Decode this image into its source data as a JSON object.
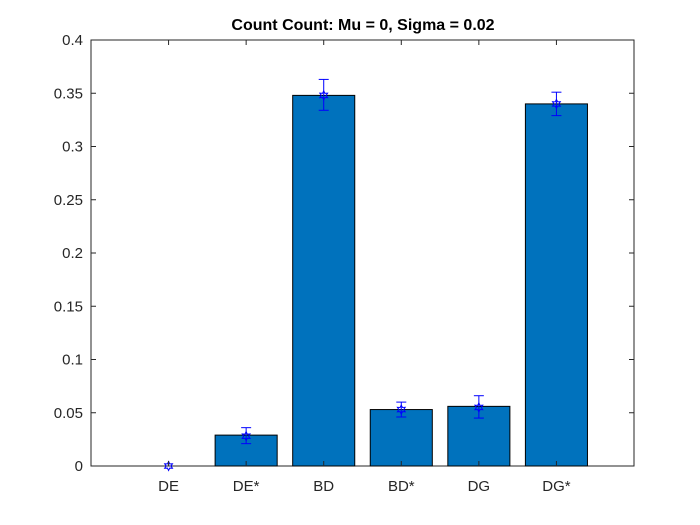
{
  "chart_data": {
    "type": "bar",
    "title": "Count Count: Mu = 0, Sigma = 0.02",
    "xlabel": "",
    "ylabel": "",
    "categories": [
      "DE",
      "DE*",
      "BD",
      "BD*",
      "DG",
      "DG*"
    ],
    "values": [
      0.0,
      0.029,
      0.348,
      0.053,
      0.056,
      0.34
    ],
    "error_bars": {
      "center": [
        0.0,
        0.028,
        0.348,
        0.053,
        0.055,
        0.34
      ],
      "lower": [
        0.0,
        0.021,
        0.334,
        0.046,
        0.045,
        0.329
      ],
      "upper": [
        0.0,
        0.036,
        0.363,
        0.06,
        0.066,
        0.351
      ]
    },
    "ylim": [
      0,
      0.4
    ],
    "yticks": [
      0,
      0.05,
      0.1,
      0.15,
      0.2,
      0.25,
      0.3,
      0.35,
      0.4
    ],
    "ytick_labels": [
      "0",
      "0.05",
      "0.1",
      "0.15",
      "0.2",
      "0.25",
      "0.3",
      "0.35",
      "0.4"
    ],
    "grid": false,
    "colors": {
      "bar": "#0072BD",
      "error": "#0000FF",
      "axis": "#262626"
    }
  }
}
